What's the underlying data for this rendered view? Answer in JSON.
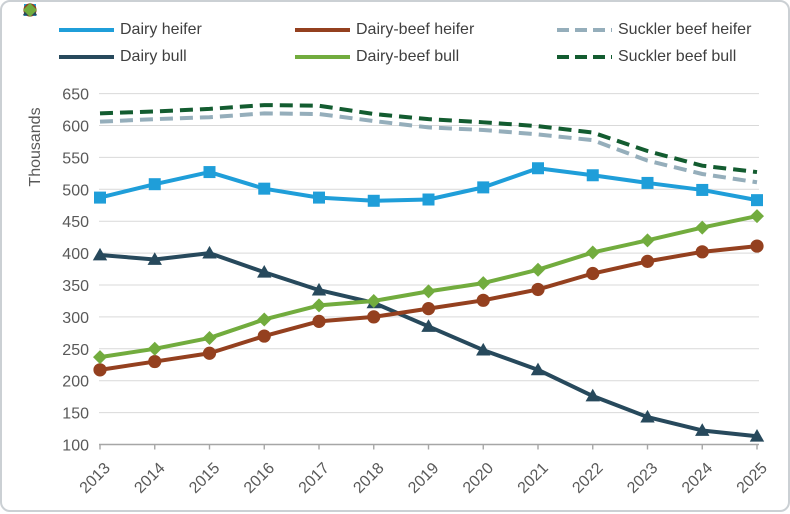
{
  "colors": {
    "background": "#ffffff",
    "frame_border": "#cbd0d4",
    "grid": "#d9d9d9",
    "axis": "#a6a6a6",
    "tick_text": "#595959",
    "legend_text": "#3f3f3f"
  },
  "chart_data": {
    "type": "line",
    "title": "",
    "xlabel": "",
    "ylabel": "Thousands",
    "ylim": [
      100,
      650
    ],
    "yticks": [
      100,
      150,
      200,
      250,
      300,
      350,
      400,
      450,
      500,
      550,
      600,
      650
    ],
    "grid": true,
    "legend_position": "top",
    "legend_order": [
      0,
      2,
      4,
      1,
      3,
      5
    ],
    "x": [
      "2013",
      "2014",
      "2015",
      "2016",
      "2017",
      "2018",
      "2019",
      "2020",
      "2021",
      "2022",
      "2023",
      "2024",
      "2025"
    ],
    "series": [
      {
        "name": "Dairy heifer",
        "color": "#1f9ed9",
        "marker": "square",
        "line_style": "solid",
        "values": [
          487,
          508,
          527,
          501,
          487,
          482,
          484,
          503,
          533,
          522,
          510,
          499,
          483
        ]
      },
      {
        "name": "Dairy bull",
        "color": "#27495c",
        "marker": "triangle",
        "line_style": "solid",
        "values": [
          397,
          390,
          400,
          370,
          342,
          322,
          285,
          248,
          217,
          176,
          143,
          122,
          113
        ]
      },
      {
        "name": "Dairy-beef heifer",
        "color": "#94401f",
        "marker": "circle",
        "line_style": "solid",
        "values": [
          217,
          230,
          243,
          270,
          293,
          300,
          313,
          326,
          343,
          368,
          387,
          402,
          411
        ]
      },
      {
        "name": "Dairy-beef bull",
        "color": "#72ac3e",
        "marker": "diamond",
        "line_style": "solid",
        "values": [
          237,
          250,
          267,
          296,
          318,
          325,
          340,
          353,
          374,
          401,
          420,
          440,
          458
        ]
      },
      {
        "name": "Suckler beef heifer",
        "color": "#95aebb",
        "marker": "none",
        "line_style": "dashed",
        "values": [
          606,
          610,
          613,
          619,
          618,
          607,
          597,
          593,
          586,
          577,
          545,
          524,
          511
        ]
      },
      {
        "name": "Suckler beef bull",
        "color": "#135c30",
        "marker": "none",
        "line_style": "dashed",
        "values": [
          619,
          622,
          626,
          632,
          631,
          618,
          610,
          605,
          599,
          589,
          560,
          537,
          527
        ]
      }
    ]
  }
}
